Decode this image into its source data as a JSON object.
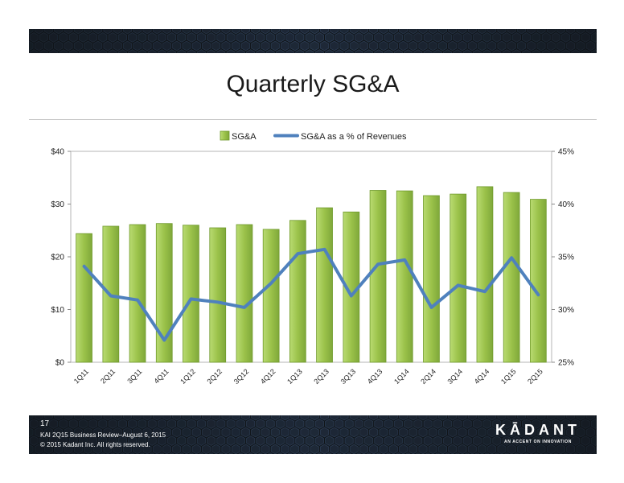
{
  "slide": {
    "title": "Quarterly SG&A",
    "page_number": "17",
    "footer_line1": "KAI 2Q15 Business Review–August 6, 2015",
    "footer_line2": "© 2015 Kadant Inc. All rights reserved.",
    "logo_name": "KĀDANT",
    "logo_tagline": "AN ACCENT ON INNOVATION"
  },
  "colors": {
    "bar_fill": "#9bc24a",
    "bar_stroke": "#6f9a2b",
    "line": "#4f81bd",
    "band": "#101418"
  },
  "chart_data": {
    "type": "bar",
    "categories": [
      "1Q11",
      "2Q11",
      "3Q11",
      "4Q11",
      "1Q12",
      "2Q12",
      "3Q12",
      "4Q12",
      "1Q13",
      "2Q13",
      "3Q13",
      "4Q13",
      "1Q14",
      "2Q14",
      "3Q14",
      "4Q14",
      "1Q15",
      "2Q15"
    ],
    "series": [
      {
        "name": "SG&A",
        "type": "bar",
        "axis": "left",
        "values": [
          24.4,
          25.8,
          26.1,
          26.3,
          26.0,
          25.5,
          26.1,
          25.2,
          26.9,
          29.3,
          28.5,
          32.6,
          32.5,
          31.6,
          31.9,
          33.3,
          32.2,
          30.9
        ]
      },
      {
        "name": "SG&A as a % of Revenues",
        "type": "line",
        "axis": "right",
        "values": [
          34.1,
          31.3,
          30.9,
          27.1,
          31.0,
          30.7,
          30.2,
          32.5,
          35.3,
          35.7,
          31.3,
          34.3,
          34.7,
          30.2,
          32.3,
          31.7,
          34.9,
          31.4
        ]
      }
    ],
    "y_left": {
      "min": 0,
      "max": 40,
      "ticks": [
        "$0",
        "$10",
        "$20",
        "$30",
        "$40"
      ]
    },
    "y_right": {
      "min": 25,
      "max": 45,
      "ticks": [
        "25%",
        "30%",
        "35%",
        "40%",
        "45%"
      ]
    },
    "legend": "top-center",
    "grid": false
  }
}
